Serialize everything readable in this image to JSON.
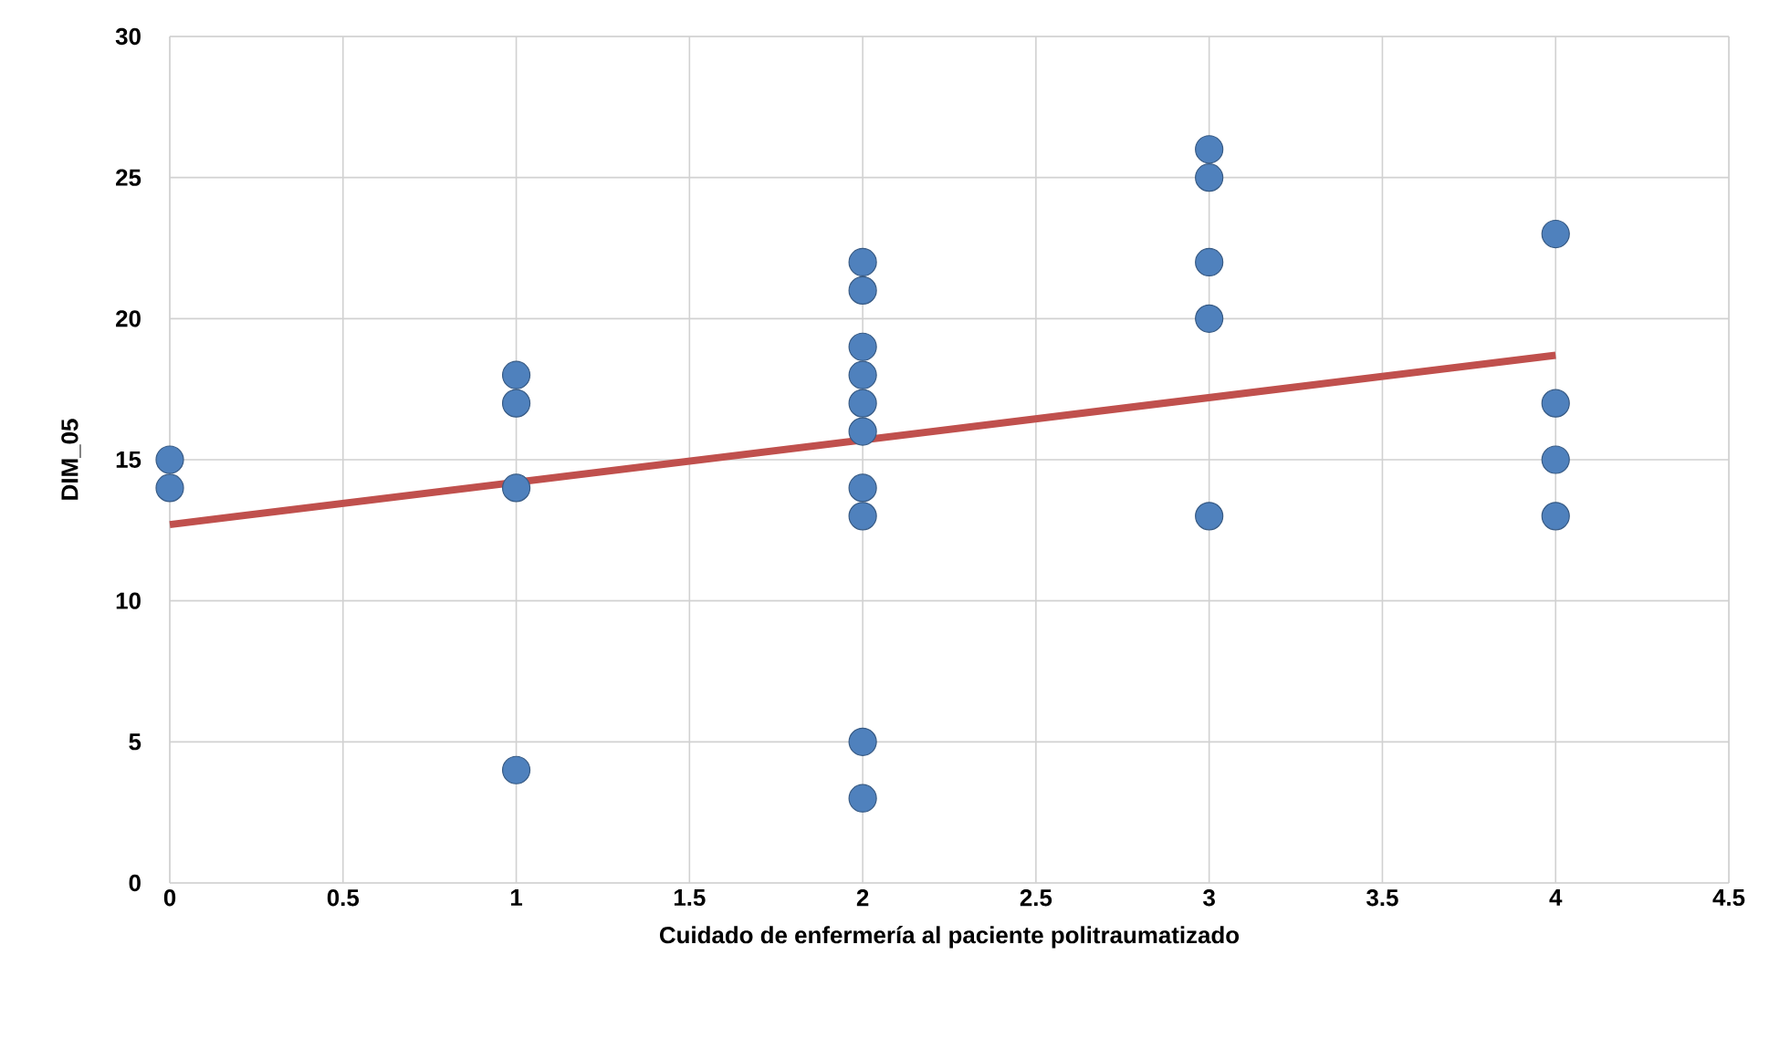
{
  "chart_data": {
    "type": "scatter",
    "xlabel": "Cuidado de enfermería al paciente politraumatizado",
    "ylabel": "DIM_05",
    "xlim": [
      0,
      4.5
    ],
    "ylim": [
      0,
      30
    ],
    "xticks": [
      0,
      0.5,
      1,
      1.5,
      2,
      2.5,
      3,
      3.5,
      4,
      4.5
    ],
    "yticks": [
      0,
      5,
      10,
      15,
      20,
      25,
      30
    ],
    "grid": true,
    "series": [
      {
        "type": "scatter",
        "marker": "circle",
        "color": "#4f81bd",
        "x": [
          0,
          0,
          1,
          1,
          1,
          1,
          2,
          2,
          2,
          2,
          2,
          2,
          2,
          2,
          2,
          2,
          3,
          3,
          3,
          3,
          3,
          4,
          4,
          4,
          4
        ],
        "values": [
          15,
          14,
          18,
          17,
          14,
          4,
          22,
          21,
          19,
          18,
          17,
          16,
          14,
          13,
          5,
          3,
          26,
          25,
          22,
          20,
          13,
          23,
          17,
          15,
          13
        ]
      },
      {
        "type": "line",
        "color": "#c0504d",
        "x": [
          0,
          4
        ],
        "values": [
          12.7,
          18.7
        ]
      }
    ]
  }
}
